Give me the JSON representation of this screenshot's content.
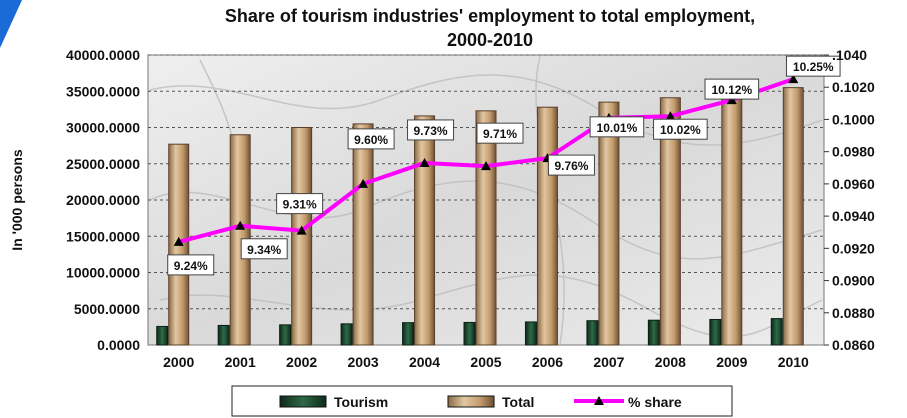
{
  "chart_data": {
    "type": "bar",
    "title_line1": "Share of tourism industries' employment to total employment,",
    "title_line2": "2000-2010",
    "ylabel": "In '000 persons",
    "categories": [
      "2000",
      "2001",
      "2002",
      "2003",
      "2004",
      "2005",
      "2006",
      "2007",
      "2008",
      "2009",
      "2010"
    ],
    "ylim": [
      0,
      40000
    ],
    "y_ticks": [
      "0.0000",
      "5000.0000",
      "10000.0000",
      "15000.0000",
      "20000.0000",
      "25000.0000",
      "30000.0000",
      "35000.0000",
      "40000.0000"
    ],
    "y2lim": [
      0.086,
      0.104
    ],
    "y2_ticks": [
      "0.0860",
      "0.0880",
      "0.0900",
      "0.0920",
      "0.0940",
      "0.0960",
      "0.0980",
      "0.1000",
      "0.1020",
      ".1040"
    ],
    "grid": true,
    "legend_position": "bottom",
    "series": [
      {
        "name": "Tourism",
        "type": "bar",
        "color": "#1e4a30",
        "values": [
          2560,
          2700,
          2780,
          2920,
          3080,
          3110,
          3180,
          3350,
          3420,
          3520,
          3640
        ]
      },
      {
        "name": "Total",
        "type": "bar",
        "color": "#c9a57a",
        "values": [
          27700,
          29000,
          30000,
          30500,
          31600,
          32300,
          32800,
          33500,
          34100,
          34800,
          35500
        ]
      },
      {
        "name": "% share",
        "type": "line",
        "axis": "secondary",
        "color": "#ff00ff",
        "values": [
          0.0924,
          0.0934,
          0.0931,
          0.096,
          0.0973,
          0.0971,
          0.0976,
          0.1001,
          0.1002,
          0.1012,
          0.1025
        ],
        "labels": [
          "9.24%",
          "9.34%",
          "9.31%",
          "9.60%",
          "9.73%",
          "9.71%",
          "9.76%",
          "10.01%",
          "10.02%",
          "10.12%",
          "10.25%"
        ]
      }
    ],
    "colors": {
      "plot_bg": "#e4e4e4",
      "grid": "#555555",
      "line": "#ff00ff",
      "marker": "#000000"
    }
  }
}
